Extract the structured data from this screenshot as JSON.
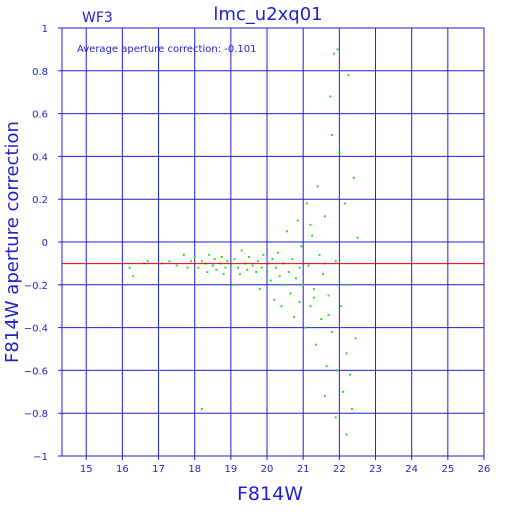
{
  "chart_data": {
    "type": "scatter",
    "title": "lmc_u2xq01",
    "panel_label": "WF3",
    "annotation": "Average aperture correction: -0.101",
    "xlabel": "F814W",
    "ylabel": "F814W aperture correction",
    "xlim": [
      14.33,
      26
    ],
    "ylim": [
      -1,
      1
    ],
    "xticks": [
      15,
      16,
      17,
      18,
      19,
      20,
      21,
      22,
      23,
      24,
      25,
      26
    ],
    "yticks": [
      -1,
      -0.8,
      -0.6,
      -0.4,
      -0.2,
      0,
      0.2,
      0.4,
      0.6,
      0.8,
      1
    ],
    "ytick_labels": [
      "−1",
      "−0.8",
      "−0.6",
      "−0.4",
      "−0.2",
      "0",
      "0.2",
      "0.4",
      "0.6",
      "0.8",
      "1"
    ],
    "grid": true,
    "reference_line": {
      "y": -0.101,
      "color": "#e00000"
    },
    "colors": {
      "axes": "#1f1fcf",
      "points": "#22e022",
      "reference": "#e00000"
    },
    "series": [
      {
        "values_description": "points",
        "points": [
          [
            16.2,
            -0.12
          ],
          [
            16.3,
            -0.16
          ],
          [
            16.6,
            -0.1
          ],
          [
            16.7,
            -0.09
          ],
          [
            17.1,
            -0.1
          ],
          [
            17.3,
            -0.09
          ],
          [
            17.5,
            -0.11
          ],
          [
            17.7,
            -0.06
          ],
          [
            17.8,
            -0.12
          ],
          [
            17.9,
            -0.09
          ],
          [
            18.0,
            -0.07
          ],
          [
            18.1,
            -0.12
          ],
          [
            18.2,
            -0.09
          ],
          [
            18.3,
            -0.1
          ],
          [
            18.35,
            -0.14
          ],
          [
            18.4,
            -0.06
          ],
          [
            18.5,
            -0.11
          ],
          [
            18.55,
            -0.08
          ],
          [
            18.6,
            -0.13
          ],
          [
            18.7,
            -0.1
          ],
          [
            18.75,
            -0.07
          ],
          [
            18.8,
            -0.15
          ],
          [
            18.85,
            -0.12
          ],
          [
            18.9,
            -0.09
          ],
          [
            19.0,
            -0.11
          ],
          [
            19.05,
            -0.2
          ],
          [
            19.1,
            -0.08
          ],
          [
            19.2,
            -0.12
          ],
          [
            19.25,
            -0.15
          ],
          [
            19.3,
            -0.04
          ],
          [
            19.4,
            -0.1
          ],
          [
            19.45,
            -0.13
          ],
          [
            19.5,
            -0.07
          ],
          [
            19.6,
            -0.11
          ],
          [
            19.7,
            -0.14
          ],
          [
            19.75,
            -0.09
          ],
          [
            19.8,
            -0.22
          ],
          [
            19.85,
            -0.12
          ],
          [
            19.9,
            -0.06
          ],
          [
            20.0,
            -0.14
          ],
          [
            20.05,
            -0.1
          ],
          [
            20.1,
            -0.18
          ],
          [
            20.15,
            -0.08
          ],
          [
            20.2,
            -0.27
          ],
          [
            20.25,
            -0.12
          ],
          [
            20.3,
            -0.05
          ],
          [
            20.35,
            -0.16
          ],
          [
            20.4,
            -0.3
          ],
          [
            20.45,
            -0.1
          ],
          [
            20.5,
            -0.2
          ],
          [
            20.55,
            0.05
          ],
          [
            20.6,
            -0.14
          ],
          [
            20.65,
            -0.24
          ],
          [
            20.7,
            -0.08
          ],
          [
            20.75,
            -0.35
          ],
          [
            20.8,
            -0.17
          ],
          [
            20.85,
            0.1
          ],
          [
            20.9,
            -0.28
          ],
          [
            20.95,
            -0.02
          ],
          [
            21.0,
            -0.2
          ],
          [
            21.05,
            -0.4
          ],
          [
            21.1,
            0.18
          ],
          [
            21.15,
            -0.11
          ],
          [
            21.2,
            -0.3
          ],
          [
            21.25,
            0.03
          ],
          [
            21.3,
            -0.22
          ],
          [
            21.35,
            -0.48
          ],
          [
            21.4,
            0.26
          ],
          [
            21.45,
            -0.06
          ],
          [
            21.5,
            -0.36
          ],
          [
            21.55,
            -0.15
          ],
          [
            21.6,
            0.12
          ],
          [
            21.65,
            -0.58
          ],
          [
            21.7,
            -0.25
          ],
          [
            21.75,
            0.68
          ],
          [
            21.8,
            -0.42
          ],
          [
            21.85,
            0.88
          ],
          [
            21.9,
            -0.09
          ],
          [
            21.95,
            -0.6
          ],
          [
            22.0,
            0.42
          ],
          [
            22.05,
            -0.3
          ],
          [
            22.1,
            -0.7
          ],
          [
            22.15,
            0.18
          ],
          [
            22.2,
            -0.52
          ],
          [
            22.25,
            0.78
          ],
          [
            22.3,
            -0.2
          ],
          [
            22.35,
            -0.78
          ],
          [
            22.4,
            0.3
          ],
          [
            22.45,
            -0.45
          ],
          [
            22.5,
            0.02
          ],
          [
            21.6,
            -0.72
          ],
          [
            21.9,
            -0.82
          ],
          [
            22.2,
            -0.9
          ],
          [
            18.2,
            -0.78
          ],
          [
            21.8,
            0.5
          ],
          [
            22.3,
            -0.62
          ],
          [
            21.2,
            0.08
          ],
          [
            21.6,
            -0.1
          ],
          [
            21.95,
            0.9
          ],
          [
            20.9,
            -0.12
          ],
          [
            21.3,
            -0.26
          ],
          [
            21.7,
            -0.34
          ]
        ]
      }
    ]
  }
}
